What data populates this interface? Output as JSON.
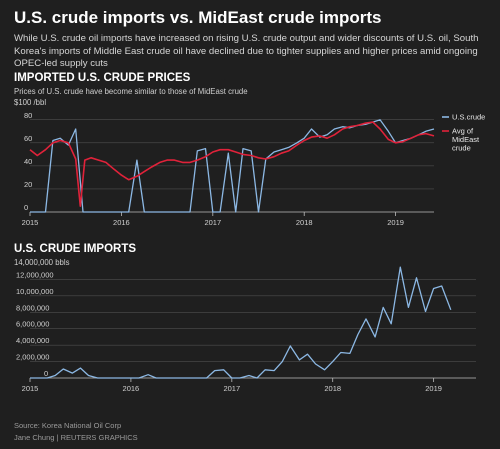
{
  "header": {
    "title": "U.S. crude imports vs. MidEast crude imports",
    "subtitle": "While U.S. crude oil imports have increased on rising U.S. crude output and wider discounts of U.S. oil, South Korea's imports of Middle East crude oil have declined due to tighter supplies and higher prices amid ongoing OPEC-led supply cuts"
  },
  "footer": {
    "source": "Source: Korea National Oil Corp",
    "credit": "Jane Chung | REUTERS GRAPHICS"
  },
  "colors": {
    "us": "#8cb8e4",
    "mideast": "#e0223a",
    "grid": "#5a5a5a",
    "axis": "#bdbdbd"
  },
  "chart_data": [
    {
      "type": "line",
      "title": "IMPORTED U.S. CRUDE PRICES",
      "subtitle": "Prices of U.S. crude have become similar to those of MidEast crude",
      "unit_label": "$100 /bbl",
      "ylim": [
        0,
        85
      ],
      "yticks": [
        0,
        20,
        40,
        60,
        80
      ],
      "xlim": [
        2015.0,
        2019.42
      ],
      "xticks": [
        {
          "value": 2015,
          "label": "2015"
        },
        {
          "value": 2016,
          "label": "2016"
        },
        {
          "value": 2017,
          "label": "2017"
        },
        {
          "value": 2018,
          "label": "2018"
        },
        {
          "value": 2019,
          "label": "2019"
        }
      ],
      "legend_position": "right",
      "series": [
        {
          "name": "U.S.crude",
          "points": [
            [
              2015.0,
              0
            ],
            [
              2015.17,
              0
            ],
            [
              2015.25,
              62
            ],
            [
              2015.33,
              64
            ],
            [
              2015.42,
              58
            ],
            [
              2015.5,
              72
            ],
            [
              2015.58,
              0
            ],
            [
              2015.67,
              0
            ],
            [
              2015.75,
              0
            ],
            [
              2015.83,
              0
            ],
            [
              2015.92,
              0
            ],
            [
              2016.0,
              0
            ],
            [
              2016.08,
              0
            ],
            [
              2016.17,
              45
            ],
            [
              2016.25,
              0
            ],
            [
              2016.33,
              0
            ],
            [
              2016.42,
              0
            ],
            [
              2016.5,
              0
            ],
            [
              2016.58,
              0
            ],
            [
              2016.67,
              0
            ],
            [
              2016.75,
              0
            ],
            [
              2016.83,
              53
            ],
            [
              2016.92,
              55
            ],
            [
              2017.0,
              0
            ],
            [
              2017.08,
              0
            ],
            [
              2017.17,
              51
            ],
            [
              2017.25,
              0
            ],
            [
              2017.33,
              55
            ],
            [
              2017.42,
              53
            ],
            [
              2017.5,
              0
            ],
            [
              2017.58,
              46
            ],
            [
              2017.67,
              52
            ],
            [
              2017.75,
              54
            ],
            [
              2017.83,
              56
            ],
            [
              2017.92,
              60
            ],
            [
              2018.0,
              64
            ],
            [
              2018.08,
              72
            ],
            [
              2018.17,
              65
            ],
            [
              2018.25,
              67
            ],
            [
              2018.33,
              72
            ],
            [
              2018.42,
              74
            ],
            [
              2018.5,
              73
            ],
            [
              2018.58,
              75
            ],
            [
              2018.67,
              76
            ],
            [
              2018.75,
              78
            ],
            [
              2018.83,
              80
            ],
            [
              2018.92,
              70
            ],
            [
              2019.0,
              60
            ],
            [
              2019.08,
              62
            ],
            [
              2019.17,
              64
            ],
            [
              2019.25,
              67
            ],
            [
              2019.33,
              70
            ],
            [
              2019.42,
              72
            ]
          ]
        },
        {
          "name": "Avg of MidEast crude",
          "points": [
            [
              2015.0,
              54
            ],
            [
              2015.08,
              49
            ],
            [
              2015.17,
              54
            ],
            [
              2015.25,
              60
            ],
            [
              2015.33,
              62
            ],
            [
              2015.42,
              60
            ],
            [
              2015.5,
              46
            ],
            [
              2015.55,
              5
            ],
            [
              2015.6,
              45
            ],
            [
              2015.67,
              47
            ],
            [
              2015.75,
              45
            ],
            [
              2015.83,
              43
            ],
            [
              2015.92,
              37
            ],
            [
              2016.0,
              32
            ],
            [
              2016.08,
              28
            ],
            [
              2016.17,
              31
            ],
            [
              2016.25,
              35
            ],
            [
              2016.33,
              39
            ],
            [
              2016.42,
              43
            ],
            [
              2016.5,
              45
            ],
            [
              2016.58,
              45
            ],
            [
              2016.67,
              43
            ],
            [
              2016.75,
              43
            ],
            [
              2016.83,
              45
            ],
            [
              2016.92,
              48
            ],
            [
              2017.0,
              52
            ],
            [
              2017.08,
              54
            ],
            [
              2017.17,
              54
            ],
            [
              2017.25,
              52
            ],
            [
              2017.33,
              50
            ],
            [
              2017.42,
              49
            ],
            [
              2017.5,
              47
            ],
            [
              2017.58,
              46
            ],
            [
              2017.67,
              48
            ],
            [
              2017.75,
              51
            ],
            [
              2017.83,
              53
            ],
            [
              2017.92,
              58
            ],
            [
              2018.0,
              62
            ],
            [
              2018.08,
              65
            ],
            [
              2018.17,
              66
            ],
            [
              2018.25,
              64
            ],
            [
              2018.33,
              67
            ],
            [
              2018.42,
              72
            ],
            [
              2018.5,
              74
            ],
            [
              2018.58,
              75
            ],
            [
              2018.67,
              77
            ],
            [
              2018.75,
              78
            ],
            [
              2018.83,
              72
            ],
            [
              2018.92,
              63
            ],
            [
              2019.0,
              60
            ],
            [
              2019.08,
              61
            ],
            [
              2019.17,
              64
            ],
            [
              2019.25,
              67
            ],
            [
              2019.33,
              68
            ],
            [
              2019.42,
              66
            ]
          ]
        }
      ]
    },
    {
      "type": "line",
      "title": "U.S. CRUDE IMPORTS",
      "unit_label": "14,000,000 bbls",
      "ylim": [
        0,
        14000000
      ],
      "yticks": [
        {
          "value": 0,
          "label": "0"
        },
        {
          "value": 2000000,
          "label": "2,000,000"
        },
        {
          "value": 4000000,
          "label": "4,000,000"
        },
        {
          "value": 6000000,
          "label": "6,000,000"
        },
        {
          "value": 8000000,
          "label": "8,000,000"
        },
        {
          "value": 10000000,
          "label": "10,000,000"
        },
        {
          "value": 12000000,
          "label": "12,000,000"
        }
      ],
      "xlim": [
        2015.0,
        2019.42
      ],
      "xticks": [
        {
          "value": 2015,
          "label": "2015"
        },
        {
          "value": 2016,
          "label": "2016"
        },
        {
          "value": 2017,
          "label": "2017"
        },
        {
          "value": 2018,
          "label": "2018"
        },
        {
          "value": 2019,
          "label": "2019"
        }
      ],
      "series": [
        {
          "name": "",
          "points": [
            [
              2015.0,
              0
            ],
            [
              2015.17,
              0
            ],
            [
              2015.25,
              300000
            ],
            [
              2015.33,
              1100000
            ],
            [
              2015.42,
              600000
            ],
            [
              2015.5,
              1200000
            ],
            [
              2015.58,
              300000
            ],
            [
              2015.67,
              0
            ],
            [
              2015.83,
              0
            ],
            [
              2016.0,
              0
            ],
            [
              2016.08,
              0
            ],
            [
              2016.17,
              400000
            ],
            [
              2016.25,
              0
            ],
            [
              2016.5,
              0
            ],
            [
              2016.75,
              0
            ],
            [
              2016.83,
              900000
            ],
            [
              2016.92,
              1000000
            ],
            [
              2017.0,
              0
            ],
            [
              2017.08,
              0
            ],
            [
              2017.17,
              300000
            ],
            [
              2017.25,
              0
            ],
            [
              2017.33,
              1000000
            ],
            [
              2017.42,
              900000
            ],
            [
              2017.5,
              2000000
            ],
            [
              2017.58,
              3900000
            ],
            [
              2017.67,
              2200000
            ],
            [
              2017.75,
              2900000
            ],
            [
              2017.83,
              1700000
            ],
            [
              2017.92,
              1000000
            ],
            [
              2018.0,
              2000000
            ],
            [
              2018.08,
              3100000
            ],
            [
              2018.17,
              3000000
            ],
            [
              2018.25,
              5300000
            ],
            [
              2018.33,
              7200000
            ],
            [
              2018.42,
              5000000
            ],
            [
              2018.5,
              8600000
            ],
            [
              2018.58,
              6600000
            ],
            [
              2018.67,
              13500000
            ],
            [
              2018.75,
              8600000
            ],
            [
              2018.83,
              12200000
            ],
            [
              2018.92,
              8100000
            ],
            [
              2019.0,
              10900000
            ],
            [
              2019.08,
              11200000
            ],
            [
              2019.17,
              8300000
            ]
          ]
        }
      ]
    }
  ]
}
